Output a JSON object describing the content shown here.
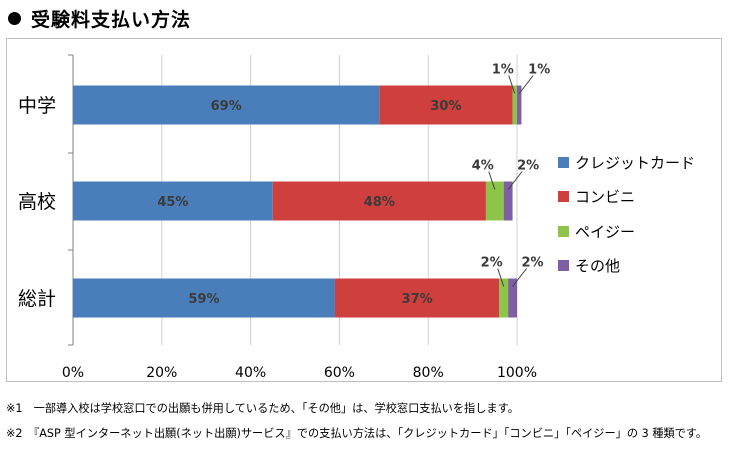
{
  "heading": {
    "title": "受験料支払い方法"
  },
  "chart_data": {
    "type": "bar",
    "orientation": "horizontal",
    "stacked": true,
    "categories": [
      "中学",
      "高校",
      "総計"
    ],
    "series": [
      {
        "name": "クレジットカード",
        "color": "#4A7EBB",
        "values": [
          69,
          45,
          59
        ],
        "labels": [
          "69%",
          "45%",
          "59%"
        ]
      },
      {
        "name": "コンビニ",
        "color": "#CF3F3D",
        "values": [
          30,
          48,
          37
        ],
        "labels": [
          "30%",
          "48%",
          "37%"
        ]
      },
      {
        "name": "ペイジー",
        "color": "#8DC54B",
        "values": [
          1,
          4,
          2
        ],
        "labels": [
          "1%",
          "4%",
          "2%"
        ]
      },
      {
        "name": "その他",
        "color": "#7E5FA3",
        "values": [
          1,
          2,
          2
        ],
        "labels": [
          "1%",
          "2%",
          "2%"
        ]
      }
    ],
    "xlim": [
      0,
      100
    ],
    "xticks": [
      "0%",
      "20%",
      "40%",
      "60%",
      "80%",
      "100%"
    ],
    "grid": true,
    "legend": "right"
  },
  "notes": [
    "※1　一部導入校は学校窓口での出願も併用しているため、「その他」は、学校窓口支払いを指します。",
    "※2　『ASP 型インターネット出願(ネット出願)サービス』での支払い方法は、「クレジットカード」「コンビニ」「ペイジー」の 3 種類です。"
  ]
}
